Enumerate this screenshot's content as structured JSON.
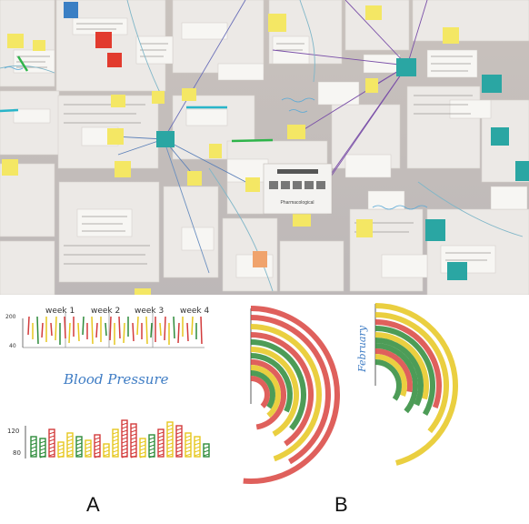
{
  "photo": {
    "center_note": "Pharmacological"
  },
  "sketch_a": {
    "weeks": [
      "week 1",
      "week 2",
      "week 3",
      "week 4"
    ],
    "y_top_high": "200",
    "y_top_low": "40",
    "title": "Blood Pressure",
    "y_bottom_high": "120",
    "y_bottom_low": "80",
    "bar_colors": [
      "#2e8b3a",
      "#2e8b3a",
      "#d23b3b",
      "#e6c71f",
      "#e6c71f",
      "#2e8b3a",
      "#e6c71f",
      "#d23b3b",
      "#e6c71f",
      "#e6c71f",
      "#d23b3b",
      "#d23b3b",
      "#e6c71f",
      "#2e8b3a",
      "#d23b3b",
      "#e6c71f",
      "#d23b3b",
      "#e6c71f",
      "#e6c71f",
      "#2e8b3a"
    ]
  },
  "sketch_b": {
    "right_label": "February"
  },
  "labels": {
    "a": "A",
    "b": "B"
  }
}
